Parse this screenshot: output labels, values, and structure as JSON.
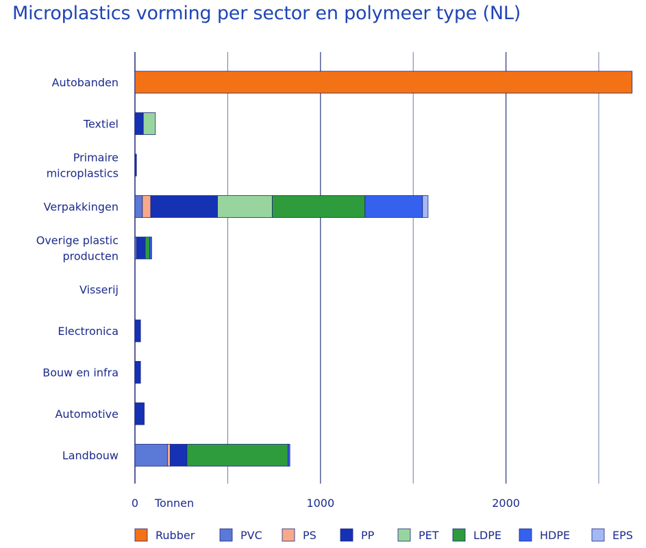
{
  "chart_data": {
    "type": "bar",
    "orientation": "horizontal",
    "stacked": true,
    "title": "Microplastics vorming per sector en polymeer type (NL)",
    "xlabel": "Tonnen",
    "xlim": [
      0,
      2680
    ],
    "xticks": [
      0,
      1000,
      2000
    ],
    "grid_lines": [
      0,
      500,
      1000,
      1500,
      2000,
      2500
    ],
    "grid": true,
    "legend_position": "bottom",
    "categories": [
      "Autobanden",
      "Textiel",
      "Primaire\nmicroplastics",
      "Verpakkingen",
      "Overige plastic\nproducten",
      "Visserij",
      "Electronica",
      "Bouw en infra",
      "Automotive",
      "Landbouw"
    ],
    "series": [
      {
        "name": "Rubber",
        "color": "#f47216",
        "values": [
          2680,
          0,
          0,
          0,
          0,
          0,
          0,
          0,
          0,
          0
        ]
      },
      {
        "name": "PVC",
        "color": "#5b79d6",
        "values": [
          0,
          0,
          0,
          40,
          10,
          0,
          0,
          0,
          0,
          175
        ]
      },
      {
        "name": "PS",
        "color": "#f7a98c",
        "values": [
          0,
          0,
          0,
          45,
          0,
          0,
          0,
          0,
          0,
          15
        ]
      },
      {
        "name": "PP",
        "color": "#1532b4",
        "values": [
          0,
          45,
          8,
          360,
          45,
          0,
          30,
          30,
          50,
          90
        ]
      },
      {
        "name": "PET",
        "color": "#98d59e",
        "values": [
          0,
          65,
          0,
          295,
          0,
          0,
          0,
          0,
          0,
          0
        ]
      },
      {
        "name": "LDPE",
        "color": "#2e9c3c",
        "values": [
          0,
          0,
          0,
          500,
          25,
          0,
          0,
          0,
          0,
          545
        ]
      },
      {
        "name": "HDPE",
        "color": "#3561ef",
        "values": [
          0,
          0,
          0,
          310,
          10,
          0,
          0,
          0,
          0,
          10
        ]
      },
      {
        "name": "EPS",
        "color": "#a4b9f4",
        "values": [
          0,
          0,
          0,
          30,
          0,
          0,
          0,
          0,
          0,
          0
        ]
      }
    ]
  }
}
